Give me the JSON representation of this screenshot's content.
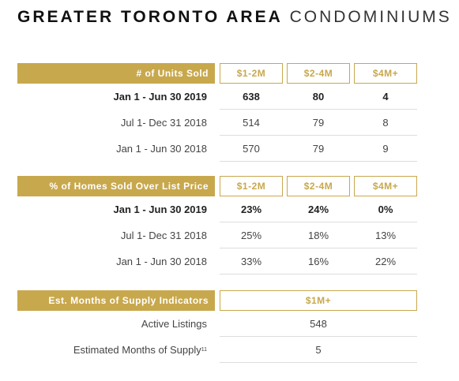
{
  "title": {
    "bold": "GREATER TORONTO AREA",
    "light": "CONDOMINIUMS"
  },
  "tables": [
    {
      "header": {
        "label": "# of Units Sold",
        "columns": [
          "$1-2M",
          "$2-4M",
          "$4M+"
        ]
      },
      "rows": [
        {
          "label": "Jan 1 - Jun 30 2019",
          "values": [
            "638",
            "80",
            "4"
          ]
        },
        {
          "label": "Jul 1- Dec 31 2018",
          "values": [
            "514",
            "79",
            "8"
          ]
        },
        {
          "label": "Jan 1 - Jun 30 2018",
          "values": [
            "570",
            "79",
            "9"
          ]
        }
      ]
    },
    {
      "header": {
        "label": "% of Homes Sold Over List Price",
        "columns": [
          "$1-2M",
          "$2-4M",
          "$4M+"
        ]
      },
      "rows": [
        {
          "label": "Jan 1 - Jun 30 2019",
          "values": [
            "23%",
            "24%",
            "0%"
          ]
        },
        {
          "label": "Jul 1- Dec 31 2018",
          "values": [
            "25%",
            "18%",
            "13%"
          ]
        },
        {
          "label": "Jan 1 - Jun 30 2018",
          "values": [
            "33%",
            "16%",
            "22%"
          ]
        }
      ]
    },
    {
      "header": {
        "label": "Est. Months of Supply Indicators",
        "columns": [
          "$1M+"
        ]
      },
      "rows": [
        {
          "label": "Active Listings",
          "values": [
            "548"
          ]
        },
        {
          "label": "Estimated Months of Supply",
          "footnote": "11",
          "values": [
            "5"
          ]
        }
      ]
    }
  ]
}
